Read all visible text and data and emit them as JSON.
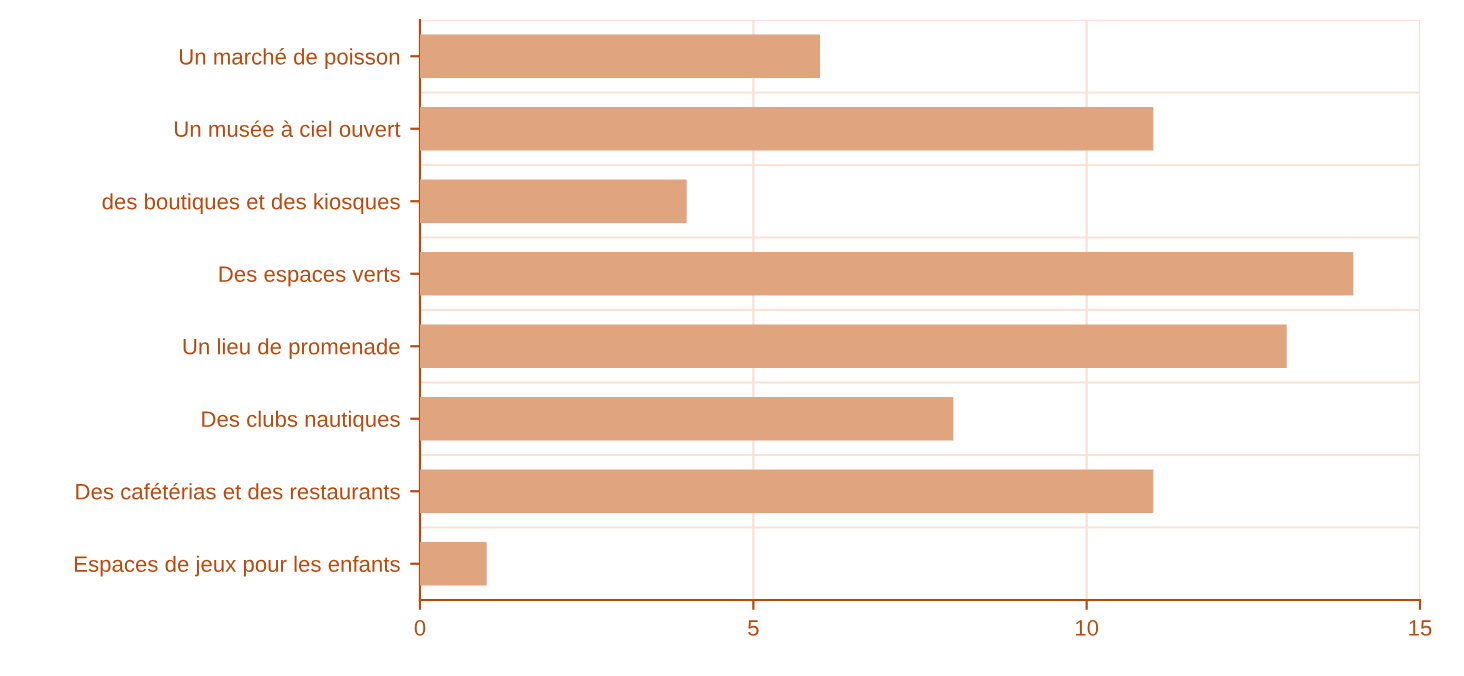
{
  "chart_data": {
    "type": "bar",
    "orientation": "horizontal",
    "categories": [
      "Un marché de poisson",
      "Un musée à ciel ouvert",
      "des boutiques et des kiosques",
      "Des espaces verts",
      "Un lieu de promenade",
      "Des clubs nautiques",
      "Des cafétérias et des restaurants",
      "Espaces de jeux pour les enfants"
    ],
    "values": [
      6,
      11,
      4,
      14,
      13,
      8,
      11,
      1
    ],
    "color": "#e0a47f",
    "xlim": [
      0,
      15
    ],
    "xticks": [
      0,
      5,
      10,
      15
    ],
    "grid": true
  }
}
